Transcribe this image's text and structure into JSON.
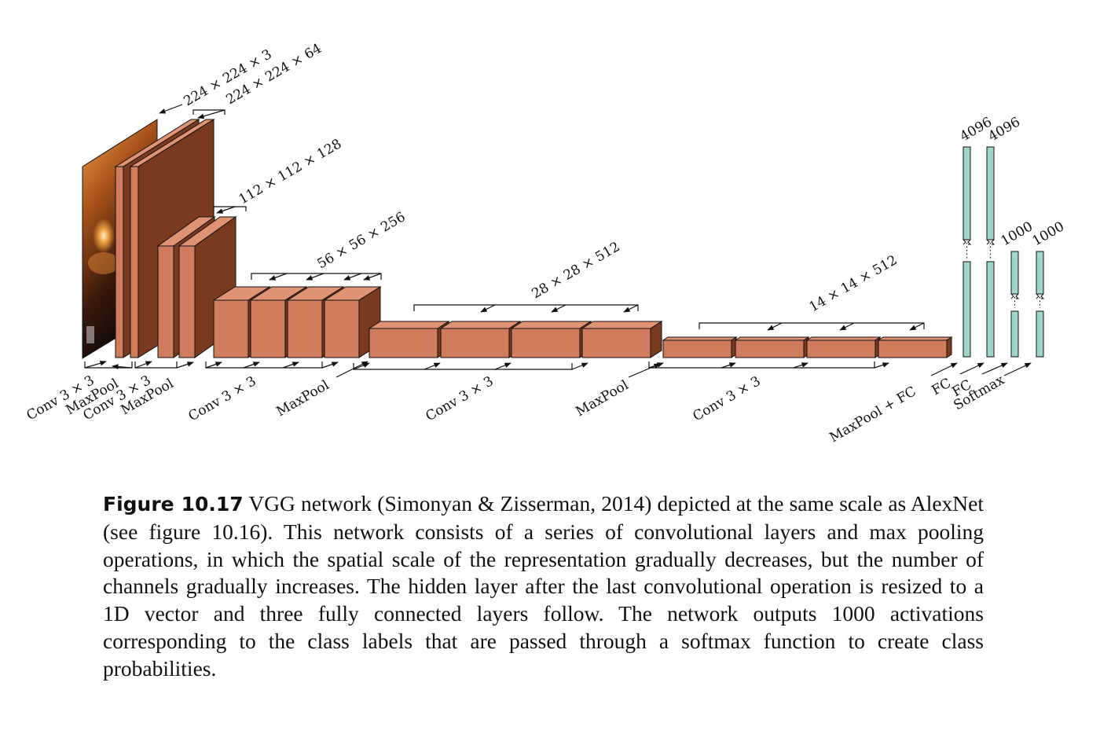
{
  "diagram": {
    "shape_labels": {
      "s1": "224 × 224 × 3",
      "s2": "224 × 224 × 64",
      "s3": "112 × 112 × 128",
      "s4": "56 × 56 × 256",
      "s5": "28 × 28 × 512",
      "s6": "14 × 14 × 512"
    },
    "fc_labels": {
      "fc1": "4096",
      "fc2": "4096",
      "fc3": "1000",
      "fc4": "1000"
    },
    "op_labels": {
      "conv1": "Conv 3 × 3",
      "pool1": "MaxPool",
      "conv2": "Conv 3 × 3",
      "pool2": "MaxPool",
      "conv3": "Conv 3 × 3",
      "pool3": "MaxPool",
      "conv4": "Conv 3 × 3",
      "pool4": "MaxPool",
      "conv5": "Conv 3 × 3",
      "pool5": "MaxPool + FC",
      "fc_a": "FC",
      "fc_b": "FC",
      "softmax": "Softmax"
    },
    "colors": {
      "block_front": "#d07c5c",
      "block_top": "#e09373",
      "block_side": "#7a3a20",
      "fc_fill": "#9ed6cb",
      "stroke": "#111111"
    }
  },
  "caption": {
    "label": "Figure 10.17",
    "text": " VGG network (Simonyan & Zisserman, 2014) depicted at the same scale as AlexNet (see figure 10.16). This network consists of a series of convolutional layers and max pooling operations, in which the spatial scale of the representation gradually decreases, but the number of channels gradually increases. The hidden layer after the last convolutional operation is resized to a 1D vector and three fully connected layers follow. The network outputs 1000 activations corresponding to the class labels that are passed through a softmax function to create class probabilities."
  }
}
